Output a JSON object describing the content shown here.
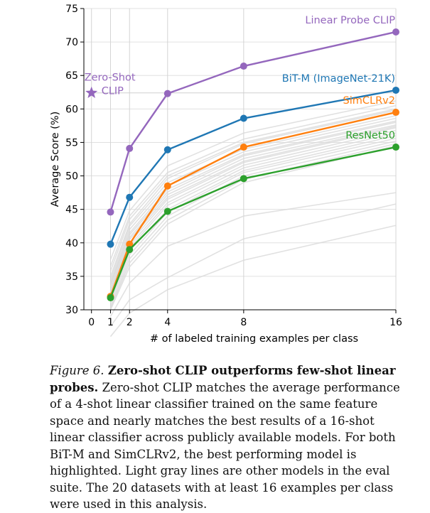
{
  "chart_data": {
    "type": "line",
    "xlabel": "# of labeled training examples per class",
    "ylabel": "Average Score (%)",
    "xlim": [
      -0.4,
      16
    ],
    "ylim": [
      30,
      75
    ],
    "xticks": [
      0,
      1,
      2,
      4,
      8,
      16
    ],
    "yticks": [
      30,
      35,
      40,
      45,
      50,
      55,
      60,
      65,
      70,
      75
    ],
    "grid": true,
    "series": [
      {
        "name": "Linear Probe CLIP",
        "color": "#9467bd",
        "x": [
          1,
          2,
          4,
          8,
          16
        ],
        "y": [
          44.6,
          54.1,
          62.3,
          66.4,
          71.5
        ]
      },
      {
        "name": "BiT-M (ImageNet-21K)",
        "color": "#1f77b4",
        "x": [
          1,
          2,
          4,
          8,
          16
        ],
        "y": [
          39.8,
          46.8,
          53.9,
          58.6,
          62.8
        ]
      },
      {
        "name": "SimCLRv2",
        "color": "#ff7f0e",
        "x": [
          1,
          2,
          4,
          8,
          16
        ],
        "y": [
          32.0,
          39.8,
          48.5,
          54.3,
          59.5
        ]
      },
      {
        "name": "ResNet50",
        "color": "#2ca02c",
        "x": [
          1,
          2,
          4,
          8,
          16
        ],
        "y": [
          31.8,
          39.0,
          44.7,
          49.6,
          54.3
        ]
      }
    ],
    "zero_shot_clip": {
      "label_line1": "Zero-Shot",
      "label_line2": "CLIP",
      "x": 0,
      "y": 62.4,
      "color": "#9467bd"
    },
    "gray_series_color": "#d9d9d9",
    "gray_series": [
      [
        36.5,
        44.0,
        50.5,
        55.5,
        60.5
      ],
      [
        35.8,
        43.5,
        50.0,
        55.0,
        60.0
      ],
      [
        35.0,
        42.8,
        49.6,
        54.8,
        59.8
      ],
      [
        34.5,
        42.5,
        49.0,
        54.0,
        59.0
      ],
      [
        34.0,
        42.0,
        48.5,
        53.6,
        58.6
      ],
      [
        33.8,
        41.5,
        48.0,
        53.2,
        58.2
      ],
      [
        33.5,
        41.2,
        47.6,
        53.0,
        58.0
      ],
      [
        33.0,
        40.8,
        47.2,
        52.6,
        57.6
      ],
      [
        32.8,
        40.5,
        46.8,
        52.2,
        57.4
      ],
      [
        32.5,
        40.0,
        46.5,
        52.0,
        57.2
      ],
      [
        32.2,
        39.6,
        46.0,
        51.6,
        56.8
      ],
      [
        31.8,
        39.2,
        45.6,
        51.2,
        56.4
      ],
      [
        31.5,
        38.8,
        45.0,
        50.8,
        56.0
      ],
      [
        31.0,
        38.2,
        44.6,
        50.5,
        55.6
      ],
      [
        30.5,
        37.6,
        44.0,
        50.0,
        55.2
      ],
      [
        30.2,
        37.0,
        43.4,
        49.5,
        54.8
      ],
      [
        30.0,
        36.4,
        42.8,
        49.0,
        54.5
      ],
      [
        37.5,
        44.8,
        51.5,
        56.4,
        61.2
      ],
      [
        29.0,
        34.0,
        39.5,
        44.0,
        47.5
      ],
      [
        27.5,
        31.5,
        34.8,
        40.6,
        45.8
      ],
      [
        26.0,
        29.5,
        33.0,
        37.4,
        42.6
      ]
    ]
  },
  "caption": {
    "fig_label": "Figure 6.",
    "fig_title": "Zero-shot CLIP outperforms few-shot linear probes.",
    "body": "Zero-shot CLIP matches the average performance of a 4-shot linear classifier trained on the same feature space and nearly matches the best results of a 16-shot linear classifier across publicly available models.  For both BiT-M and SimCLRv2, the best performing model is highlighted. Light gray lines are other models in the eval suite.  The 20 datasets with at least 16 examples per class were used in this analysis."
  }
}
